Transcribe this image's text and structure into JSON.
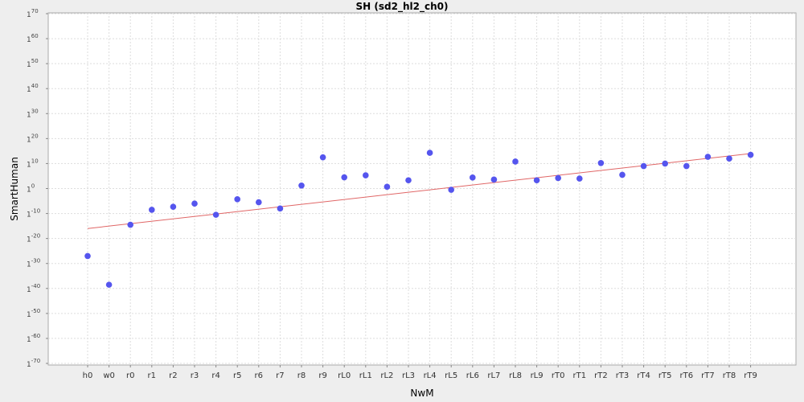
{
  "chart_data": {
    "type": "scatter",
    "title": "SH (sd2_hl2_ch0)",
    "xlabel": "NwM",
    "ylabel": "SmartHuman",
    "y_tick_base": "1",
    "y_ticks": [
      70,
      60,
      50,
      40,
      30,
      20,
      10,
      0,
      -10,
      -20,
      -30,
      -40,
      -50,
      -60,
      -70
    ],
    "ylim": [
      -70,
      70
    ],
    "categories": [
      "h0",
      "w0",
      "r0",
      "r1",
      "r2",
      "r3",
      "r4",
      "r5",
      "r6",
      "r7",
      "r8",
      "r9",
      "rL0",
      "rL1",
      "rL2",
      "rL3",
      "rL4",
      "rL5",
      "rL6",
      "rL7",
      "rL8",
      "rL9",
      "rT0",
      "rT1",
      "rT2",
      "rT3",
      "rT4",
      "rT5",
      "rT6",
      "rT7",
      "rT8",
      "rT9"
    ],
    "values": [
      -27,
      -38.5,
      -14.5,
      -8.5,
      -7.3,
      -6,
      -10.5,
      -4.3,
      -5.5,
      -8,
      1.2,
      12.5,
      4.5,
      5.3,
      0.7,
      3.3,
      14.3,
      -0.5,
      4.4,
      3.6,
      10.8,
      3.3,
      4.2,
      4,
      10.2,
      5.5,
      9,
      10,
      9,
      12.7,
      12,
      13.5
    ],
    "trend": {
      "from": -16,
      "to": 14
    },
    "grid": true,
    "colors": {
      "points": "#5555ee",
      "trend": "#e06666",
      "grid": "#dddddd",
      "background": "#ffffff"
    }
  }
}
